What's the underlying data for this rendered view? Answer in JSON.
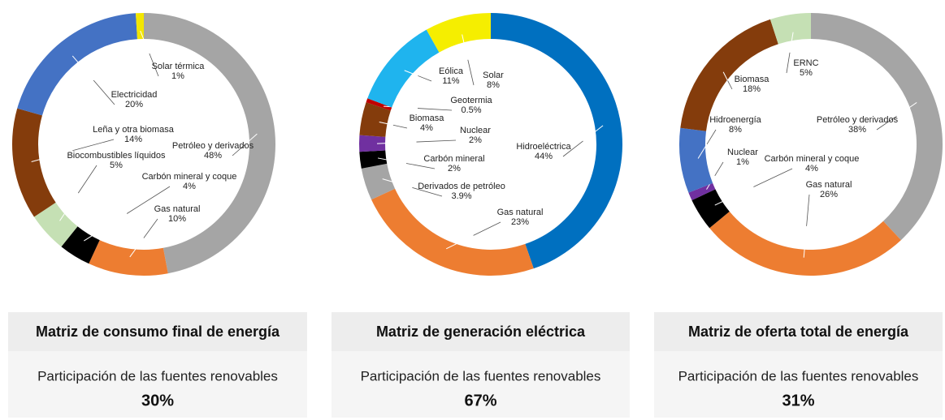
{
  "chart_data": [
    {
      "type": "pie",
      "donut": true,
      "title": "Matriz de consumo final de energía",
      "subtitle": "Participación de las fuentes renovables",
      "renewable_share": "30%",
      "categories": [
        "Petróleo y derivados",
        "Gas natural",
        "Carbón mineral y coque",
        "Biocombustibles líquidos",
        "Leña y otra biomasa",
        "Electricidad",
        "Solar térmica"
      ],
      "values": [
        48,
        10,
        4,
        5,
        14,
        20,
        1
      ],
      "value_labels": [
        "48%",
        "10%",
        "4%",
        "5%",
        "14%",
        "20%",
        "1%"
      ],
      "colors": [
        "#a5a5a5",
        "#ed7d31",
        "#000000",
        "#c5e0b4",
        "#843c0c",
        "#4472c4",
        "#f2e600"
      ]
    },
    {
      "type": "pie",
      "donut": true,
      "title": "Matriz de generación eléctrica",
      "subtitle": "Participación de las fuentes renovables",
      "renewable_share": "67%",
      "categories": [
        "Hidroeléctrica",
        "Gas natural",
        "Derivados de petróleo",
        "Carbón mineral",
        "Nuclear",
        "Biomasa",
        "Geotermia",
        "Eólica",
        "Solar"
      ],
      "values": [
        44,
        23,
        3.9,
        2,
        2,
        4,
        0.5,
        11,
        8
      ],
      "value_labels": [
        "44%",
        "23%",
        "3.9%",
        "2%",
        "2%",
        "4%",
        "0.5%",
        "11%",
        "8%"
      ],
      "colors": [
        "#0070c0",
        "#ed7d31",
        "#a5a5a5",
        "#000000",
        "#7030a0",
        "#843c0c",
        "#c00000",
        "#1fb4ee",
        "#f5ee00"
      ]
    },
    {
      "type": "pie",
      "donut": true,
      "title": "Matriz de oferta total de energía",
      "subtitle": "Participación de las fuentes renovables",
      "renewable_share": "31%",
      "categories": [
        "Petróleo y derivados",
        "Gas natural",
        "Carbón mineral y coque",
        "Nuclear",
        "Hidroenergía",
        "Biomasa",
        "ERNC"
      ],
      "values": [
        38,
        26,
        4,
        1,
        8,
        18,
        5
      ],
      "value_labels": [
        "38%",
        "26%",
        "4%",
        "1%",
        "8%",
        "18%",
        "5%"
      ],
      "colors": [
        "#a5a5a5",
        "#ed7d31",
        "#000000",
        "#7030a0",
        "#4472c4",
        "#843c0c",
        "#c5e0b4"
      ]
    }
  ]
}
